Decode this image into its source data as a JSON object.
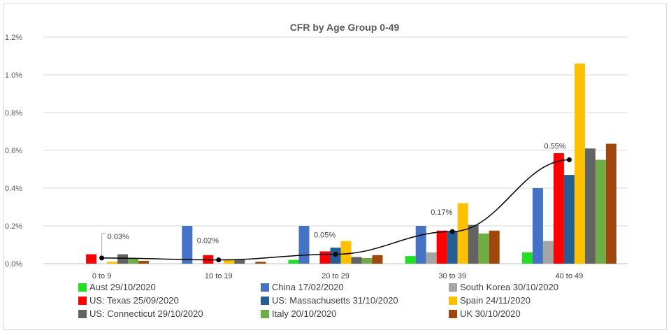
{
  "chart_data": {
    "type": "bar",
    "title": "CFR by Age Group 0-49",
    "xlabel": "",
    "ylabel": "",
    "categories": [
      "0 to 9",
      "10 to 19",
      "20 to 29",
      "30 to 39",
      "40 to 49"
    ],
    "ylim": [
      0,
      1.2
    ],
    "y_ticks": [
      "0.0%",
      "0.2%",
      "0.4%",
      "0.6%",
      "0.8%",
      "1.0%",
      "1.2%"
    ],
    "grid": true,
    "legend_position": "bottom",
    "series": [
      {
        "name": "Aust 29/10/2020",
        "color": "#21e021",
        "values": [
          0.0,
          0.0,
          0.02,
          0.04,
          0.06
        ]
      },
      {
        "name": "China 17/02/2020",
        "color": "#4472c4",
        "values": [
          0.0,
          0.2,
          0.2,
          0.2,
          0.4
        ]
      },
      {
        "name": "South Korea 30/10/2020",
        "color": "#a5a5a5",
        "values": [
          0.0,
          0.0,
          0.0,
          0.06,
          0.12
        ]
      },
      {
        "name": "US: Texas 25/09/2020",
        "color": "#ff0000",
        "values": [
          0.05,
          0.045,
          0.065,
          0.175,
          0.585
        ]
      },
      {
        "name": "US: Massachusetts 31/10/2020",
        "color": "#255e91",
        "values": [
          0.0,
          0.0,
          0.085,
          0.17,
          0.47
        ]
      },
      {
        "name": "Spain 24/11/2020",
        "color": "#ffc000",
        "values": [
          0.01,
          0.02,
          0.12,
          0.32,
          1.06
        ]
      },
      {
        "name": "US: Connecticut 29/10/2020",
        "color": "#636363",
        "values": [
          0.05,
          0.02,
          0.035,
          0.205,
          0.61
        ]
      },
      {
        "name": "Italy 20/10/2020",
        "color": "#70ad47",
        "values": [
          0.03,
          0.0,
          0.03,
          0.16,
          0.55
        ]
      },
      {
        "name": "UK 30/10/2020",
        "color": "#9e480e",
        "values": [
          0.015,
          0.01,
          0.045,
          0.175,
          0.635
        ]
      }
    ],
    "trend_line": {
      "values": [
        0.03,
        0.02,
        0.05,
        0.17,
        0.55
      ],
      "labels": [
        "0.03%",
        "0.02%",
        "0.05%",
        "0.17%",
        "0.55%"
      ],
      "color": "#000000"
    }
  }
}
